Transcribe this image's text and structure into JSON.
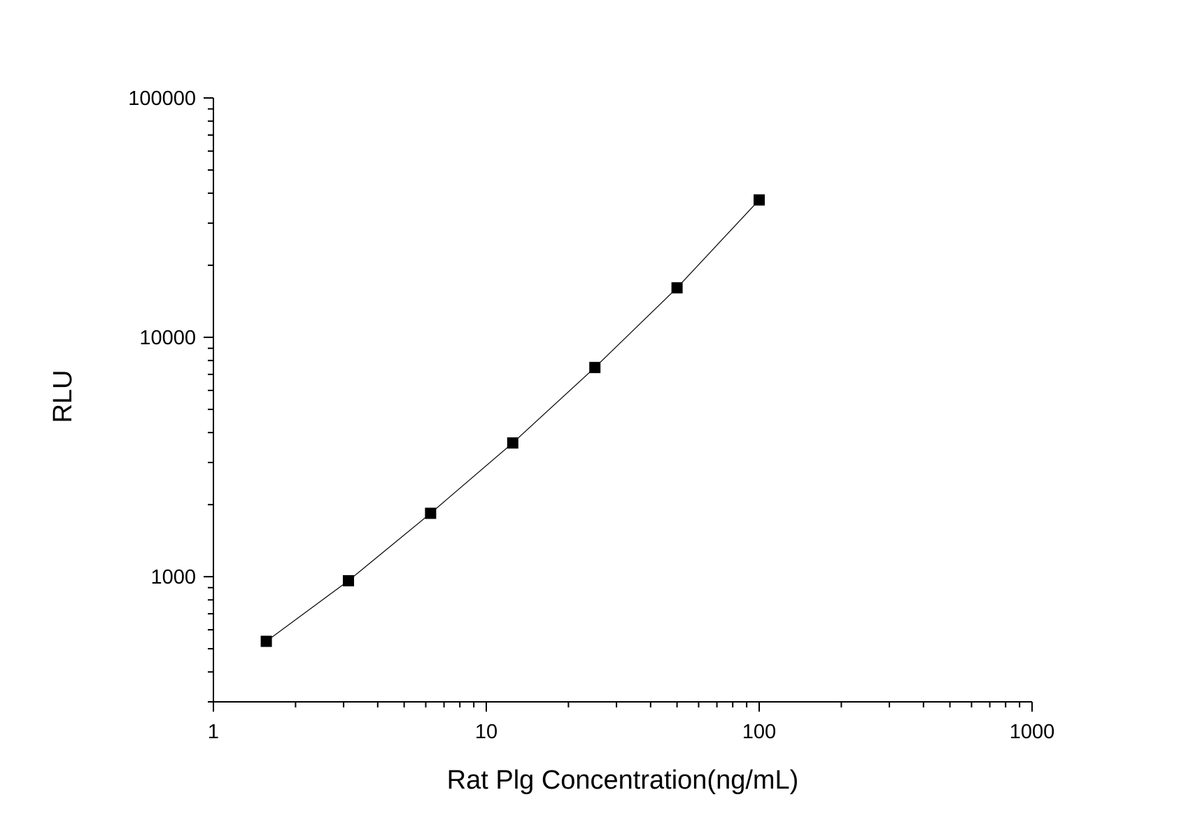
{
  "chart_data": {
    "type": "scatter",
    "title": "",
    "xlabel": "Rat Plg Concentration(ng/mL)",
    "ylabel": "RLU",
    "x_scale": "log",
    "y_scale": "log",
    "xlim": [
      1,
      1000
    ],
    "ylim": [
      300,
      100000
    ],
    "x_tick_labels": [
      "1",
      "10",
      "100",
      "1000"
    ],
    "y_tick_labels": [
      "1000",
      "10000",
      "100000"
    ],
    "grid": false,
    "legend": "none",
    "series": [
      {
        "x": [
          1.5625,
          3.125,
          6.25,
          12.5,
          25,
          50,
          100
        ],
        "y": [
          537,
          962,
          1840,
          3620,
          7480,
          16100,
          37500
        ],
        "marker": "square",
        "line": "connected",
        "color": "#000000"
      }
    ]
  }
}
